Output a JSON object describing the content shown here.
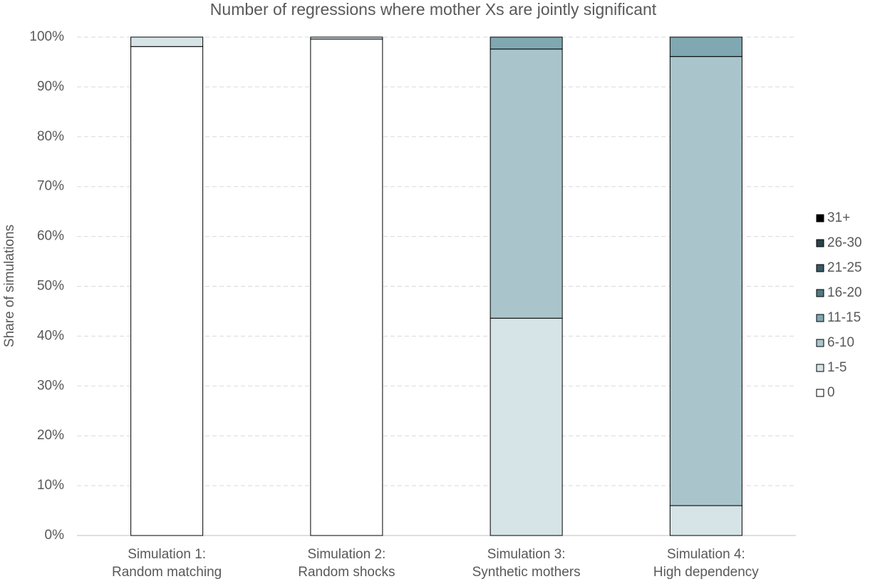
{
  "chart_data": {
    "type": "stacked_bar",
    "title": "Number of regressions where mother Xs are jointly significant",
    "y_label": "Share of simulations",
    "categories": [
      [
        "Simulation 1:",
        "Random matching"
      ],
      [
        "Simulation 2:",
        "Random shocks"
      ],
      [
        "Simulation 3:",
        "Synthetic mothers"
      ],
      [
        "Simulation 4:",
        "High dependency"
      ]
    ],
    "series": [
      {
        "name": "0",
        "color": "#ffffff",
        "values": [
          98.1,
          99.6,
          0,
          0
        ]
      },
      {
        "name": "1-5",
        "color": "#d6e3e7",
        "values": [
          1.9,
          0.4,
          43.6,
          6.0
        ]
      },
      {
        "name": "6-10",
        "color": "#a9c5cb",
        "values": [
          0,
          0,
          54.0,
          90.1
        ]
      },
      {
        "name": "11-15",
        "color": "#7fa8b2",
        "values": [
          0,
          0,
          2.4,
          3.9
        ]
      },
      {
        "name": "16-20",
        "color": "#4f7a84",
        "values": [
          0,
          0,
          0,
          0
        ]
      },
      {
        "name": "21-25",
        "color": "#3a5a62",
        "values": [
          0,
          0,
          0,
          0
        ]
      },
      {
        "name": "26-30",
        "color": "#2a4248",
        "values": [
          0,
          0,
          0,
          0
        ]
      },
      {
        "name": "31+",
        "color": "#000000",
        "values": [
          0,
          0,
          0,
          0
        ]
      }
    ],
    "ylim": [
      0,
      100
    ],
    "yticks": [
      {
        "value": 0,
        "label": "0%"
      },
      {
        "value": 10,
        "label": "10%"
      },
      {
        "value": 20,
        "label": "20%"
      },
      {
        "value": 30,
        "label": "30%"
      },
      {
        "value": 40,
        "label": "40%"
      },
      {
        "value": 50,
        "label": "50%"
      },
      {
        "value": 60,
        "label": "60%"
      },
      {
        "value": 70,
        "label": "70%"
      },
      {
        "value": 80,
        "label": "80%"
      },
      {
        "value": 90,
        "label": "90%"
      },
      {
        "value": 100,
        "label": "100%"
      }
    ],
    "grid": true,
    "legend": "right"
  }
}
